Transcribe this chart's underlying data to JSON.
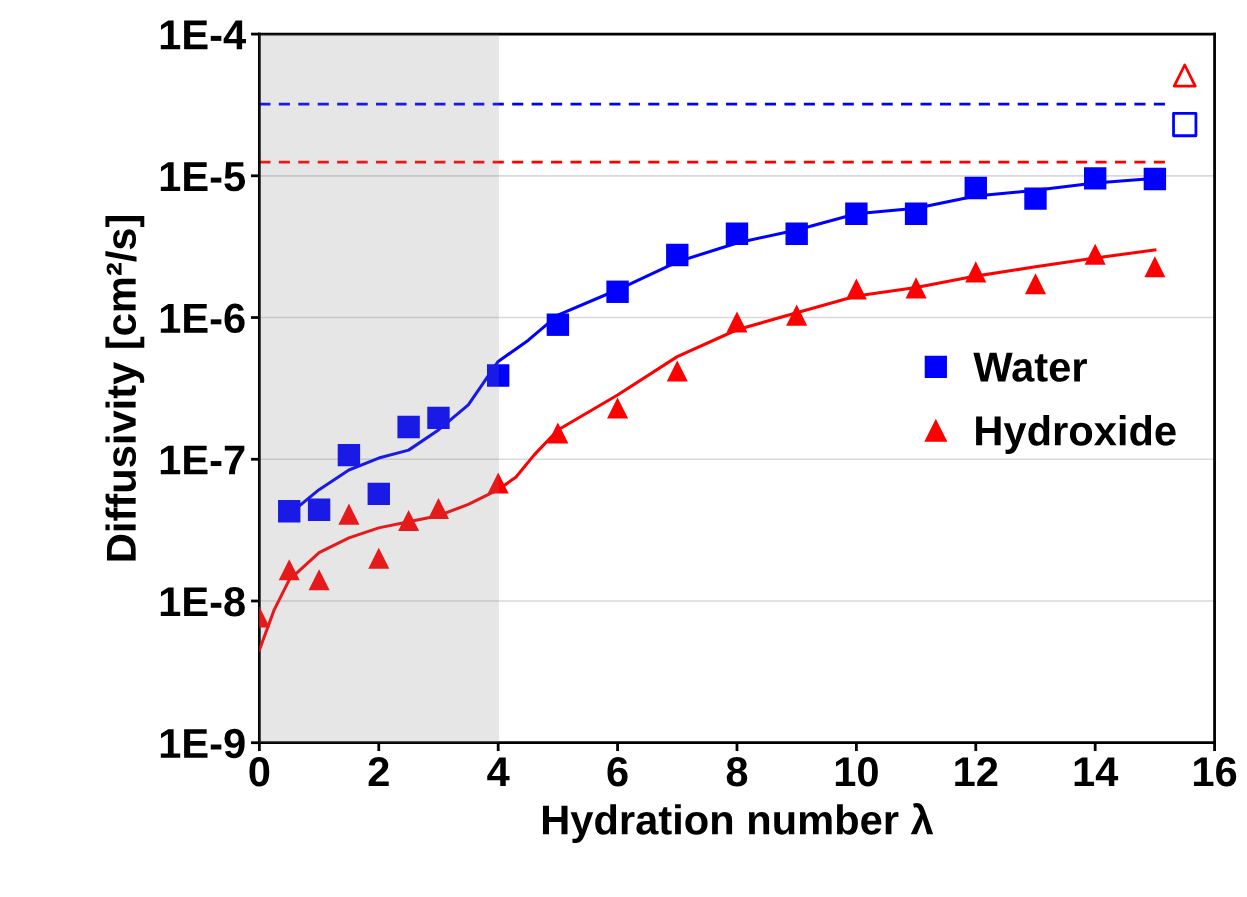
{
  "chart_data": {
    "type": "scatter",
    "xlabel": "Hydration number λ",
    "ylabel": "Diffusivity [cm²/s]",
    "xlim": [
      0,
      16
    ],
    "xticks": [
      0,
      2,
      4,
      6,
      8,
      10,
      12,
      14,
      16
    ],
    "ylim": [
      1e-09,
      0.0001
    ],
    "log": true,
    "yticks": [
      {
        "value": 1e-09,
        "label": "1E-9"
      },
      {
        "value": 1e-08,
        "label": "1E-8"
      },
      {
        "value": 1e-07,
        "label": "1E-7"
      },
      {
        "value": 1e-06,
        "label": "1E-6"
      },
      {
        "value": 1e-05,
        "label": "1E-5"
      },
      {
        "value": 0.0001,
        "label": "1E-4"
      }
    ],
    "grid": "y",
    "legend": "right",
    "series": [
      {
        "name": "Water",
        "marker": "square",
        "color": "#0000ff",
        "x": [
          0.5,
          1,
          1.5,
          2,
          2.5,
          3,
          4,
          5,
          6,
          7,
          8,
          9,
          10,
          11,
          12,
          13,
          14,
          15
        ],
        "values": [
          4.3e-08,
          4.4e-08,
          1.07e-07,
          5.7e-08,
          1.69e-07,
          1.96e-07,
          3.9e-07,
          8.9e-07,
          1.52e-06,
          2.76e-06,
          3.9e-06,
          3.9e-06,
          5.4e-06,
          5.4e-06,
          8.2e-06,
          6.9e-06,
          9.6e-06,
          9.5e-06
        ]
      },
      {
        "name": "Hydroxide",
        "marker": "triangle",
        "color": "#ff0000",
        "x": [
          0,
          0.5,
          1,
          1.5,
          2,
          2.5,
          3,
          4,
          5,
          6,
          7,
          8,
          9,
          10,
          11,
          12,
          13,
          14,
          15
        ],
        "values": [
          7.7e-09,
          1.66e-08,
          1.41e-08,
          4.1e-08,
          2e-08,
          3.7e-08,
          4.5e-08,
          6.8e-08,
          1.53e-07,
          2.3e-07,
          4.2e-07,
          9.3e-07,
          1.04e-06,
          1.59e-06,
          1.62e-06,
          2.1e-06,
          1.73e-06,
          2.8e-06,
          2.28e-06
        ]
      },
      {
        "type": "line",
        "marker": "none",
        "color": "#0000ff",
        "x": [
          0.5,
          1,
          1.5,
          2,
          2.5,
          3,
          3.5,
          4,
          4.5,
          5,
          6,
          7,
          8,
          9,
          10,
          11,
          12,
          13,
          14,
          15
        ],
        "values": [
          4.1e-08,
          6.1e-08,
          8.4e-08,
          1.02e-07,
          1.16e-07,
          1.61e-07,
          2.42e-07,
          4.9e-07,
          6.9e-07,
          1.04e-06,
          1.57e-06,
          2.47e-06,
          3.36e-06,
          4.15e-06,
          5.4e-06,
          5.9e-06,
          7.2e-06,
          7.9e-06,
          8.9e-06,
          9.6e-06
        ]
      },
      {
        "type": "line",
        "marker": "none",
        "color": "#ff0000",
        "x": [
          0,
          0.25,
          0.5,
          1,
          1.5,
          2,
          2.5,
          3,
          3.5,
          4,
          4.3,
          4.6,
          5,
          6,
          7,
          8,
          9,
          10,
          11,
          12,
          13,
          14,
          15
        ],
        "values": [
          4.5e-09,
          8.7e-09,
          1.41e-08,
          2.19e-08,
          2.79e-08,
          3.28e-08,
          3.62e-08,
          4e-08,
          4.8e-08,
          6.1e-08,
          7.5e-08,
          1.07e-07,
          1.61e-07,
          2.84e-07,
          5.3e-07,
          8.2e-07,
          1.08e-06,
          1.42e-06,
          1.63e-06,
          1.96e-06,
          2.28e-06,
          2.63e-06,
          3e-06
        ]
      },
      {
        "marker": "triangle",
        "color": "#ff0000",
        "x": [
          15.5
        ],
        "values": [
          5.1e-05
        ]
      },
      {
        "marker": "square",
        "color": "#0000ff",
        "x": [
          15.5
        ],
        "values": [
          2.3e-05
        ]
      }
    ],
    "ref_lines": [
      {
        "axis": "y",
        "value": 3.2e-05,
        "color": "#0000ff",
        "line_style": "dashed"
      },
      {
        "axis": "y",
        "value": 1.25e-05,
        "color": "#ff0000",
        "line_style": "dashed"
      }
    ],
    "bands": [
      {
        "axis": "x",
        "from": 0,
        "to": 4,
        "color": "#808080"
      }
    ]
  }
}
